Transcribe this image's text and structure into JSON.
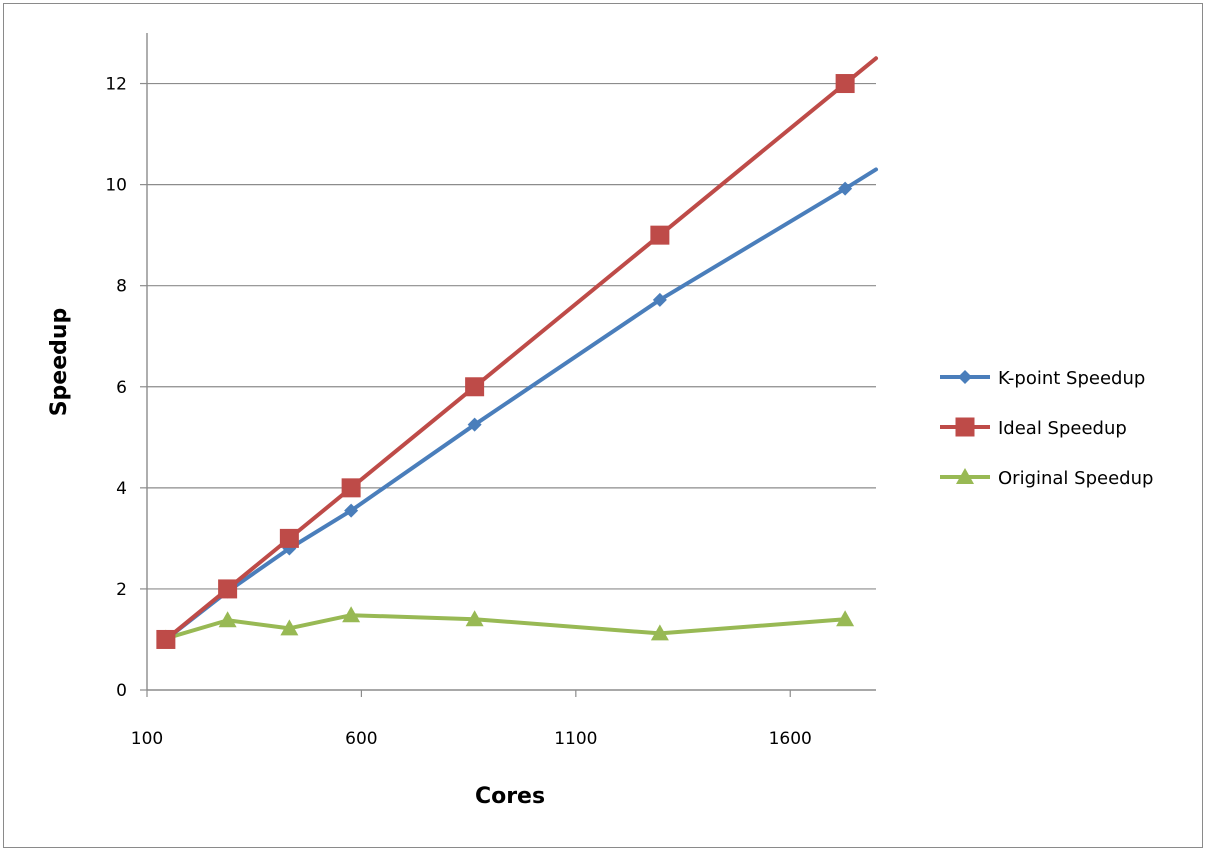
{
  "chart_data": {
    "type": "line",
    "title": "",
    "xlabel": "Cores",
    "ylabel": "Speedup",
    "xlim": [
      100,
      1800
    ],
    "ylim": [
      0,
      13
    ],
    "xticks": [
      100,
      600,
      1100,
      1600
    ],
    "yticks": [
      0,
      2,
      4,
      6,
      8,
      10,
      12
    ],
    "grid": "horizontal",
    "legend": "right",
    "series": [
      {
        "name": "K-point Speedup",
        "color": "#4a7ebb",
        "marker": "diamond",
        "x": [
          144,
          288,
          432,
          576,
          864,
          1296,
          1728,
          1800
        ],
        "y": [
          1.0,
          1.95,
          2.8,
          3.55,
          5.25,
          7.72,
          9.92,
          10.3
        ]
      },
      {
        "name": "Ideal Speedup",
        "color": "#be4b48",
        "marker": "square",
        "x": [
          144,
          288,
          432,
          576,
          864,
          1296,
          1728,
          1800
        ],
        "y": [
          1,
          2,
          3,
          4,
          6,
          9,
          12,
          12.5
        ]
      },
      {
        "name": "Original Speedup",
        "color": "#98b954",
        "marker": "triangle",
        "x": [
          144,
          288,
          432,
          576,
          864,
          1296,
          1728
        ],
        "y": [
          1.02,
          1.38,
          1.22,
          1.48,
          1.4,
          1.12,
          1.4
        ]
      }
    ],
    "marker_points": 7
  }
}
